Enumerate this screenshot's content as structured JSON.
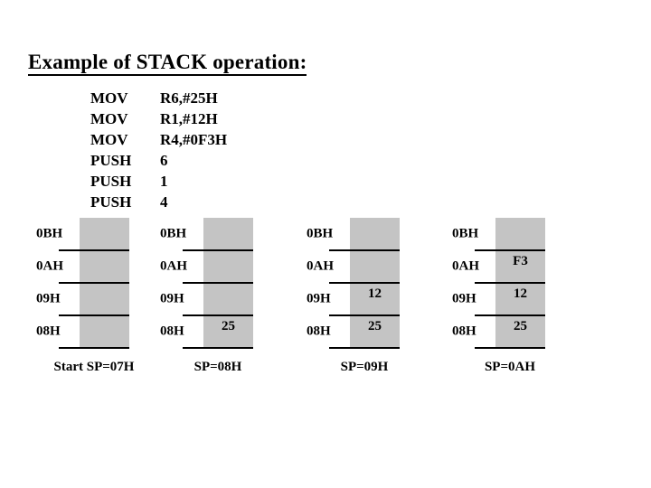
{
  "slide": {
    "title": "Example of STACK operation:",
    "code_lines": [
      {
        "mnemonic": "MOV",
        "operand": "R6,#25H"
      },
      {
        "mnemonic": "MOV",
        "operand": "R1,#12H"
      },
      {
        "mnemonic": "MOV",
        "operand": "R4,#0F3H"
      },
      {
        "mnemonic": "PUSH",
        "operand": "6"
      },
      {
        "mnemonic": "PUSH",
        "operand": "1"
      },
      {
        "mnemonic": "PUSH",
        "operand": "4"
      }
    ],
    "diagrams": [
      {
        "caption": "Start SP=07H",
        "rows": [
          {
            "address": "0BH",
            "value": ""
          },
          {
            "address": "0AH",
            "value": ""
          },
          {
            "address": "09H",
            "value": ""
          },
          {
            "address": "08H",
            "value": ""
          }
        ]
      },
      {
        "caption": "SP=08H",
        "rows": [
          {
            "address": "0BH",
            "value": ""
          },
          {
            "address": "0AH",
            "value": ""
          },
          {
            "address": "09H",
            "value": ""
          },
          {
            "address": "08H",
            "value": "25"
          }
        ]
      },
      {
        "caption": "SP=09H",
        "rows": [
          {
            "address": "0BH",
            "value": ""
          },
          {
            "address": "0AH",
            "value": ""
          },
          {
            "address": "09H",
            "value": "12"
          },
          {
            "address": "08H",
            "value": "25"
          }
        ]
      },
      {
        "caption": "SP=0AH",
        "rows": [
          {
            "address": "0BH",
            "value": ""
          },
          {
            "address": "0AH",
            "value": "F3"
          },
          {
            "address": "09H",
            "value": "12"
          },
          {
            "address": "08H",
            "value": "25"
          }
        ]
      }
    ],
    "colors": {
      "cell_fill": "#c4c4c4",
      "text": "#000000",
      "background": "#ffffff"
    }
  }
}
